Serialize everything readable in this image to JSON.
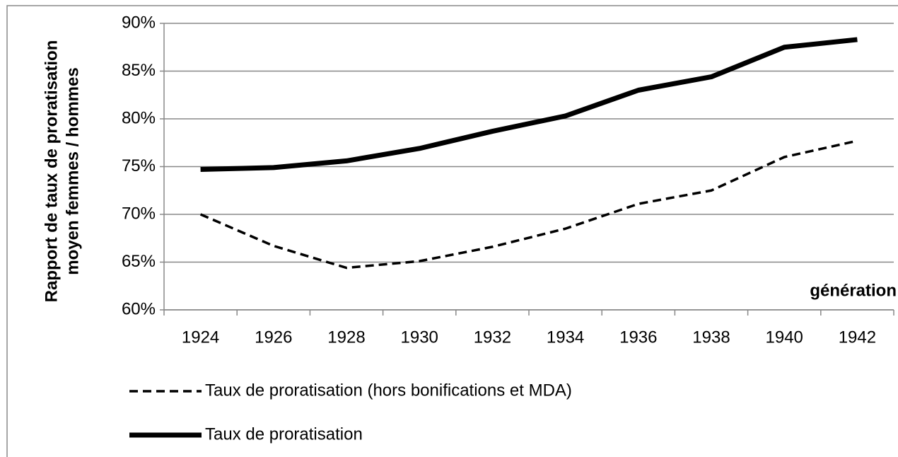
{
  "chart_data": {
    "type": "line",
    "ylabel": [
      "Rapport de taux de proratisation",
      "moyen femmes / hommes"
    ],
    "xlabel": "génération",
    "categories": [
      "1924",
      "1926",
      "1928",
      "1930",
      "1932",
      "1934",
      "1936",
      "1938",
      "1940",
      "1942"
    ],
    "series": [
      {
        "name": "Taux de proratisation (hors bonifications et MDA)",
        "color": "#000000",
        "line_style": "dashed",
        "values": [
          70.0,
          66.7,
          64.4,
          65.1,
          66.6,
          68.5,
          71.1,
          72.5,
          76.0,
          77.7
        ]
      },
      {
        "name": "Taux de proratisation",
        "color": "#000000",
        "line_style": "solid",
        "values": [
          74.7,
          74.9,
          75.6,
          76.9,
          78.7,
          80.3,
          83.0,
          84.4,
          87.5,
          88.3
        ]
      }
    ],
    "ylim": [
      60,
      90
    ],
    "yticks": [
      {
        "value": 60,
        "label": "60%"
      },
      {
        "value": 65,
        "label": "65%"
      },
      {
        "value": 70,
        "label": "70%"
      },
      {
        "value": 75,
        "label": "75%"
      },
      {
        "value": 80,
        "label": "80%"
      },
      {
        "value": 85,
        "label": "85%"
      },
      {
        "value": 90,
        "label": "90%"
      }
    ],
    "grid": true
  }
}
